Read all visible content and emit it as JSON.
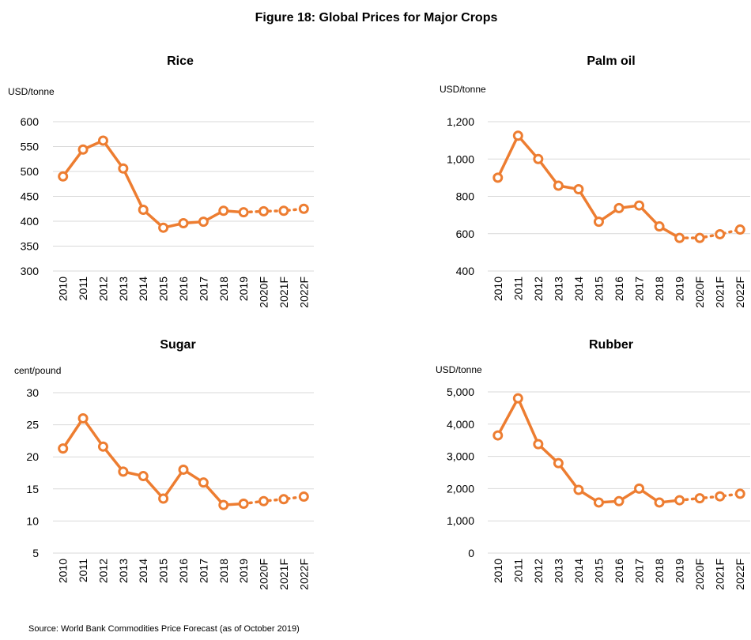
{
  "figure": {
    "title": "Figure 18: Global Prices for Major Crops",
    "source": "Source: World Bank Commodities Price Forecast (as of October 2019)"
  },
  "colors": {
    "series": "#ED7D31",
    "grid": "#D9D9D9",
    "text": "#000000"
  },
  "chart_data": [
    {
      "type": "line",
      "title": "Rice",
      "ylabel": "USD/tonne",
      "categories": [
        "2010",
        "2011",
        "2012",
        "2013",
        "2014",
        "2015",
        "2016",
        "2017",
        "2018",
        "2019",
        "2020F",
        "2021F",
        "2022F"
      ],
      "values": [
        490,
        544,
        562,
        506,
        423,
        387,
        396,
        399,
        421,
        418,
        420,
        421,
        425
      ],
      "forecast_from_index": 9,
      "ylim": [
        300,
        600
      ],
      "yticks": [
        300,
        350,
        400,
        450,
        500,
        550,
        600
      ],
      "ytick_labels": [
        "300",
        "350",
        "400",
        "450",
        "500",
        "550",
        "600"
      ],
      "grid": true
    },
    {
      "type": "line",
      "title": "Palm oil",
      "ylabel": "USD/tonne",
      "categories": [
        "2010",
        "2011",
        "2012",
        "2013",
        "2014",
        "2015",
        "2016",
        "2017",
        "2018",
        "2019",
        "2020F",
        "2021F",
        "2022F"
      ],
      "values": [
        900,
        1125,
        1000,
        857,
        838,
        664,
        737,
        751,
        639,
        577,
        577,
        597,
        622
      ],
      "forecast_from_index": 9,
      "ylim": [
        400,
        1200
      ],
      "yticks": [
        400,
        600,
        800,
        1000,
        1200
      ],
      "ytick_labels": [
        "400",
        "600",
        "800",
        "1,000",
        "1,200"
      ],
      "grid": true
    },
    {
      "type": "line",
      "title": "Sugar",
      "ylabel": "cent/pound",
      "categories": [
        "2010",
        "2011",
        "2012",
        "2013",
        "2014",
        "2015",
        "2016",
        "2017",
        "2018",
        "2019",
        "2020F",
        "2021F",
        "2022F"
      ],
      "values": [
        21.3,
        26.0,
        21.6,
        17.7,
        17.0,
        13.5,
        18.0,
        16.0,
        12.5,
        12.7,
        13.1,
        13.4,
        13.8
      ],
      "forecast_from_index": 9,
      "ylim": [
        5,
        30
      ],
      "yticks": [
        5,
        10,
        15,
        20,
        25,
        30
      ],
      "ytick_labels": [
        "5",
        "10",
        "15",
        "20",
        "25",
        "30"
      ],
      "grid": true
    },
    {
      "type": "line",
      "title": "Rubber",
      "ylabel": "USD/tonne",
      "categories": [
        "2010",
        "2011",
        "2012",
        "2013",
        "2014",
        "2015",
        "2016",
        "2017",
        "2018",
        "2019",
        "2020F",
        "2021F",
        "2022F"
      ],
      "values": [
        3650,
        4800,
        3380,
        2790,
        1960,
        1570,
        1610,
        2000,
        1570,
        1640,
        1700,
        1760,
        1840
      ],
      "forecast_from_index": 9,
      "ylim": [
        0,
        5000
      ],
      "yticks": [
        0,
        1000,
        2000,
        3000,
        4000,
        5000
      ],
      "ytick_labels": [
        "0",
        "1,000",
        "2,000",
        "3,000",
        "4,000",
        "5,000"
      ],
      "grid": true
    }
  ]
}
